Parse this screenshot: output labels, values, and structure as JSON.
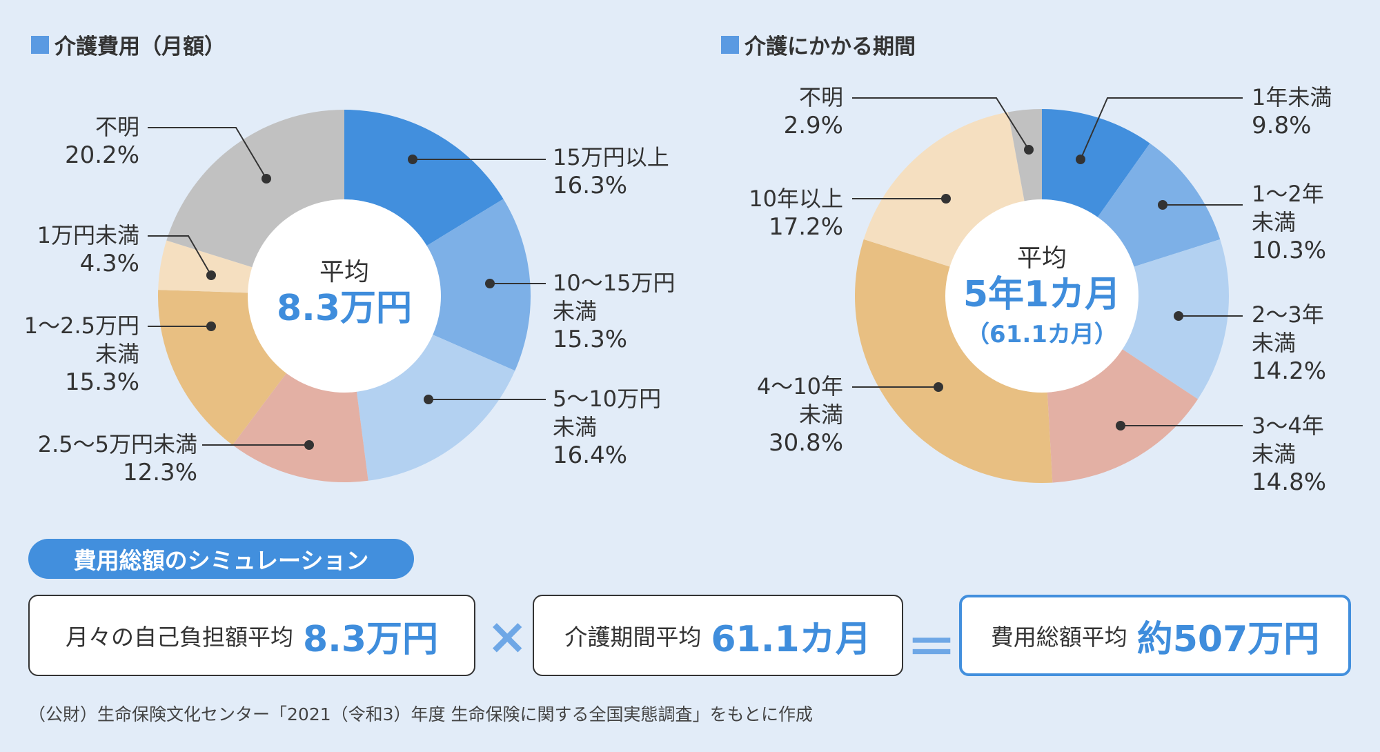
{
  "colors": {
    "background": "#e2ecf8",
    "accent": "#428fdd"
  },
  "chart_data": [
    {
      "type": "pie",
      "title": "介護費用（月額）",
      "center_label": "平均",
      "center_value": "8.3万円",
      "unit": "%",
      "slices": [
        {
          "label": "15万円以上",
          "value": 16.3,
          "text": "16.3%",
          "color": "#428fdd"
        },
        {
          "label": "10～15万円未満",
          "value": 15.3,
          "text": "15.3%",
          "color": "#7db0e7"
        },
        {
          "label": "5～10万円未満",
          "value": 16.4,
          "text": "16.4%",
          "color": "#b3d1f1"
        },
        {
          "label": "2.5～5万円未満",
          "value": 12.3,
          "text": "12.3%",
          "color": "#e3b0a4"
        },
        {
          "label": "1～2.5万円未満",
          "value": 15.3,
          "text": "15.3%",
          "color": "#e8bf82"
        },
        {
          "label": "1万円未満",
          "value": 4.3,
          "text": "4.3%",
          "color": "#f5dfc0"
        },
        {
          "label": "不明",
          "value": 20.2,
          "text": "20.2%",
          "color": "#c1c1c1"
        }
      ]
    },
    {
      "type": "pie",
      "title": "介護にかかる期間",
      "center_label": "平均",
      "center_value": "5年1カ月",
      "center_sub": "（61.1カ月）",
      "unit": "%",
      "slices": [
        {
          "label": "1年未満",
          "value": 9.8,
          "text": "9.8%",
          "color": "#428fdd"
        },
        {
          "label": "1～2年未満",
          "value": 10.3,
          "text": "10.3%",
          "color": "#7db0e7"
        },
        {
          "label": "2～3年未満",
          "value": 14.2,
          "text": "14.2%",
          "color": "#b3d1f1"
        },
        {
          "label": "3～4年未満",
          "value": 14.8,
          "text": "14.8%",
          "color": "#e3b0a4"
        },
        {
          "label": "4～10年未満",
          "value": 30.8,
          "text": "30.8%",
          "color": "#e8bf82"
        },
        {
          "label": "10年以上",
          "value": 17.2,
          "text": "17.2%",
          "color": "#f5dfc0"
        },
        {
          "label": "不明",
          "value": 2.9,
          "text": "2.9%",
          "color": "#c1c1c1"
        }
      ]
    }
  ],
  "labels": {
    "left": [
      {
        "l1": "15万円以上",
        "pct": "16.3%"
      },
      {
        "l1": "10～15万円",
        "l2": "未満",
        "pct": "15.3%"
      },
      {
        "l1": "5～10万円",
        "l2": "未満",
        "pct": "16.4%"
      },
      {
        "l1": "2.5～5万円未満",
        "pct": "12.3%"
      },
      {
        "l1": "1～2.5万円",
        "l2": "未満",
        "pct": "15.3%"
      },
      {
        "l1": "1万円未満",
        "pct": "4.3%"
      },
      {
        "l1": "不明",
        "pct": "20.2%"
      }
    ],
    "right": [
      {
        "l1": "1年未満",
        "pct": "9.8%"
      },
      {
        "l1": "1～2年",
        "l2": "未満",
        "pct": "10.3%"
      },
      {
        "l1": "2～3年",
        "l2": "未満",
        "pct": "14.2%"
      },
      {
        "l1": "3～4年",
        "l2": "未満",
        "pct": "14.8%"
      },
      {
        "l1": "4～10年",
        "l2": "未満",
        "pct": "30.8%"
      },
      {
        "l1": "10年以上",
        "pct": "17.2%"
      },
      {
        "l1": "不明",
        "pct": "2.9%"
      }
    ]
  },
  "simulation": {
    "heading": "費用総額のシミュレーション",
    "monthly_label": "月々の自己負担額平均",
    "monthly_value": "8.3万円",
    "times": "×",
    "period_label": "介護期間平均",
    "period_value": "61.1カ月",
    "equals": "＝",
    "total_label": "費用総額平均",
    "total_value": "約507万円"
  },
  "source_note": "（公財）生命保険文化センター「2021（令和3）年度 生命保険に関する全国実態調査」をもとに作成"
}
